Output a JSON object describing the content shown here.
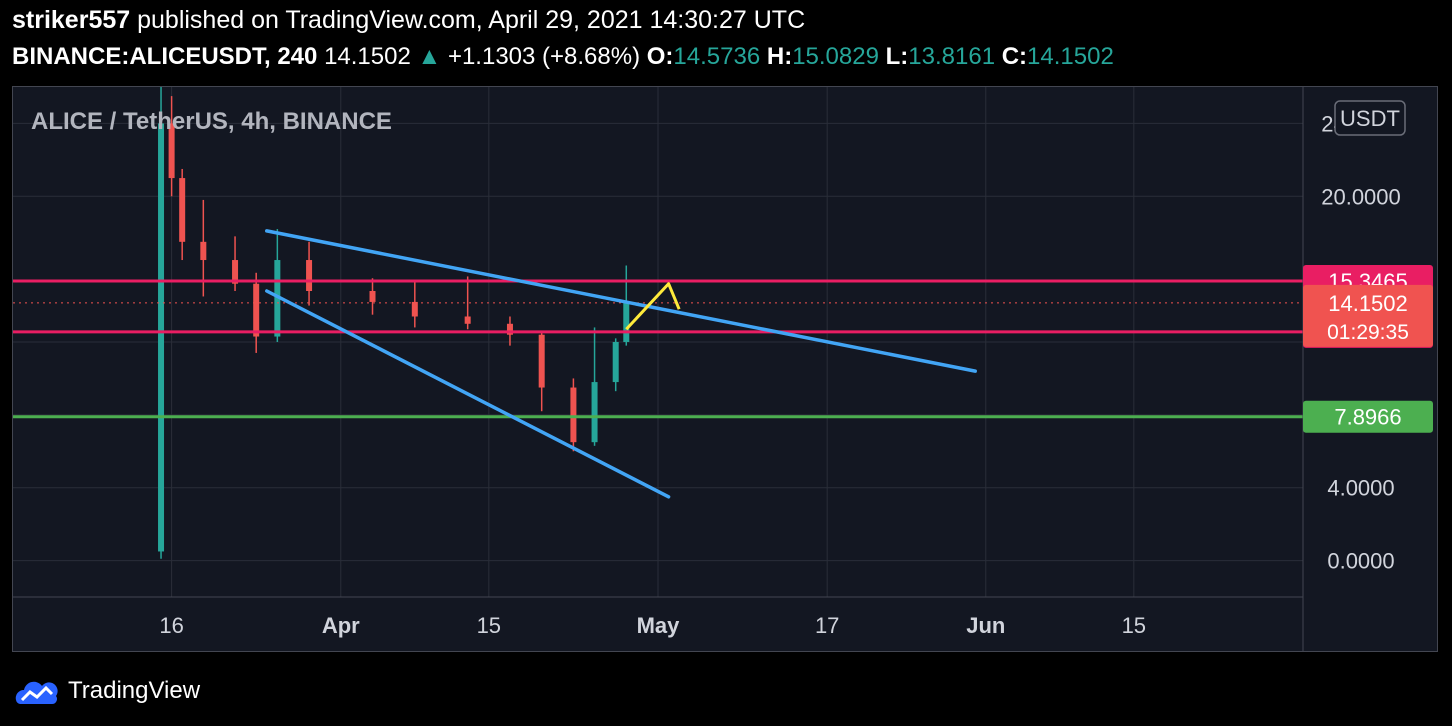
{
  "header": {
    "author": "striker557",
    "published_text": "published on TradingView.com, April 29, 2021 14:30:27 UTC",
    "symbol": "BINANCE:ALICEUSDT, 240",
    "last": "14.1502",
    "change": "+1.1303 (+8.68%)",
    "o_label": "O:",
    "o": "14.5736",
    "h_label": "H:",
    "h": "15.0829",
    "l_label": "L:",
    "l": "13.8161",
    "c_label": "C:",
    "c": "14.1502"
  },
  "chart_data": {
    "type": "candlestick",
    "title": "ALICE / TetherUS, 4h, BINANCE",
    "currency_button": "USDT",
    "y_ticks": [
      "24.0000",
      "20.0000",
      "4.0000",
      "0.0000"
    ],
    "x_ticks": [
      "16",
      "Apr",
      "15",
      "May",
      "17",
      "Jun",
      "15"
    ],
    "ylim": [
      -2,
      26
    ],
    "x_range": [
      "2021-03-01",
      "2021-07-01"
    ],
    "grid": true,
    "horizontal_levels": [
      {
        "value": 15.3465,
        "label": "15.3465",
        "color": "#e91e63"
      },
      {
        "value": 12.5533,
        "label": "12.5533",
        "color": "#e91e63"
      },
      {
        "value": 7.8966,
        "label": "7.8966",
        "color": "#4caf50"
      }
    ],
    "last_price": {
      "value": 14.1502,
      "label": "14.1502",
      "countdown": "01:29:35",
      "color": "#f05350"
    },
    "trendlines": [
      {
        "from": [
          "2021-03-25",
          18.1
        ],
        "to": [
          "2021-05-31",
          10.4
        ],
        "color": "#42a5f5"
      },
      {
        "from": [
          "2021-03-25",
          14.8
        ],
        "to": [
          "2021-05-02",
          3.5
        ],
        "color": "#42a5f5"
      }
    ],
    "arrow": {
      "from": [
        "2021-04-28",
        12.7
      ],
      "to": [
        "2021-05-02",
        15.2
      ],
      "head_to": [
        "2021-05-03",
        13.8
      ],
      "color": "#ffeb3b"
    },
    "candles_summary": [
      {
        "date": "2021-03-15",
        "o": 0.5,
        "h": 26,
        "l": 0.1,
        "c": 24
      },
      {
        "date": "2021-03-16",
        "o": 24,
        "h": 25.5,
        "l": 20,
        "c": 21
      },
      {
        "date": "2021-03-17",
        "o": 21,
        "h": 21.5,
        "l": 16.5,
        "c": 17.5
      },
      {
        "date": "2021-03-19",
        "o": 17.5,
        "h": 19.8,
        "l": 14.5,
        "c": 16.5
      },
      {
        "date": "2021-03-22",
        "o": 16.5,
        "h": 17.8,
        "l": 14.8,
        "c": 15.2
      },
      {
        "date": "2021-03-24",
        "o": 15.2,
        "h": 15.8,
        "l": 11.4,
        "c": 12.3
      },
      {
        "date": "2021-03-26",
        "o": 12.3,
        "h": 18.2,
        "l": 12.0,
        "c": 16.5
      },
      {
        "date": "2021-03-29",
        "o": 16.5,
        "h": 17.5,
        "l": 14.0,
        "c": 14.8
      },
      {
        "date": "2021-04-04",
        "o": 14.8,
        "h": 15.5,
        "l": 13.5,
        "c": 14.2
      },
      {
        "date": "2021-04-08",
        "o": 14.2,
        "h": 15.3,
        "l": 12.8,
        "c": 13.4
      },
      {
        "date": "2021-04-13",
        "o": 13.4,
        "h": 15.6,
        "l": 12.7,
        "c": 13.0
      },
      {
        "date": "2021-04-17",
        "o": 13.0,
        "h": 13.4,
        "l": 11.8,
        "c": 12.4
      },
      {
        "date": "2021-04-20",
        "o": 12.4,
        "h": 12.6,
        "l": 8.2,
        "c": 9.5
      },
      {
        "date": "2021-04-23",
        "o": 9.5,
        "h": 10.0,
        "l": 6.0,
        "c": 6.5
      },
      {
        "date": "2021-04-25",
        "o": 6.5,
        "h": 12.8,
        "l": 6.3,
        "c": 9.8
      },
      {
        "date": "2021-04-27",
        "o": 9.8,
        "h": 12.2,
        "l": 9.3,
        "c": 12.0
      },
      {
        "date": "2021-04-28",
        "o": 12.0,
        "h": 16.2,
        "l": 11.8,
        "c": 14.15
      }
    ]
  },
  "footer": {
    "brand": "TradingView"
  }
}
